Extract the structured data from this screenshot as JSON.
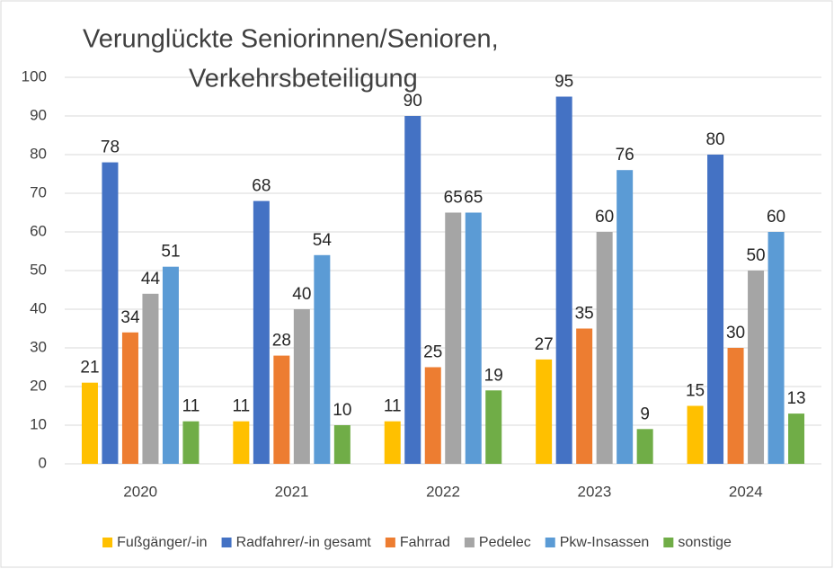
{
  "chart_data": {
    "type": "bar",
    "title": [
      "Verunglückte Seniorinnen/Senioren,",
      "Verkehrsbeteiligung"
    ],
    "categories": [
      "2020",
      "2021",
      "2022",
      "2023",
      "2024"
    ],
    "series": [
      {
        "name": "Fußgänger/-in",
        "color": "#ffc000",
        "values": [
          21,
          11,
          11,
          27,
          15
        ]
      },
      {
        "name": "Radfahrer/-in gesamt",
        "color": "#4472c4",
        "values": [
          78,
          68,
          90,
          95,
          80
        ]
      },
      {
        "name": "Fahrrad",
        "color": "#ed7d31",
        "values": [
          34,
          28,
          25,
          35,
          30
        ]
      },
      {
        "name": "Pedelec",
        "color": "#a5a5a5",
        "values": [
          44,
          40,
          65,
          60,
          50
        ]
      },
      {
        "name": "Pkw-Insassen",
        "color": "#5b9bd5",
        "values": [
          51,
          54,
          65,
          76,
          60
        ]
      },
      {
        "name": "sonstige",
        "color": "#70ad47",
        "values": [
          11,
          10,
          19,
          9,
          13
        ]
      }
    ],
    "ylim": [
      0,
      100
    ],
    "yticks": [
      0,
      10,
      20,
      30,
      40,
      50,
      60,
      70,
      80,
      90,
      100
    ],
    "grid": true,
    "legend": "bottom"
  }
}
